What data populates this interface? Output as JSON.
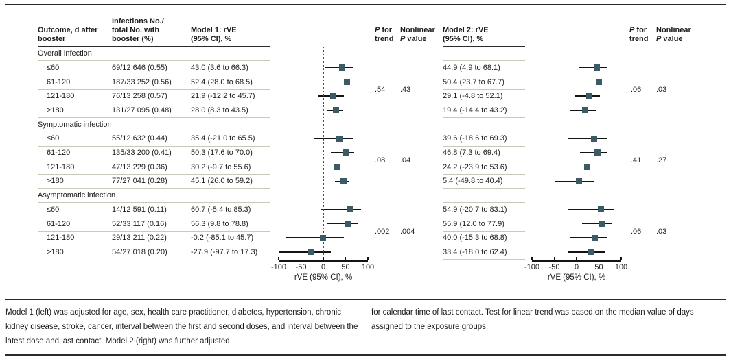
{
  "colors": {
    "marker": "#3d5b66",
    "ci_line": "#141414",
    "row_separator": "#c9c9ba",
    "header_rule": "#2b2b2b",
    "text": "#1d1d1d"
  },
  "header": {
    "col_outcome_l1": "Outcome, d after",
    "col_outcome_l2": "booster",
    "col_infections_l1": "Infections No./",
    "col_infections_l2": "total No. with",
    "col_infections_l3": "booster (%)",
    "col_model1_l1": "Model 1: rVE",
    "col_model1_l2": "(95% CI), %",
    "col_model2_l1": "Model 2: rVE",
    "col_model2_l2": "(95% CI), %",
    "p_trend": {
      "p": "P",
      "rest": " for",
      "line2": "trend"
    },
    "nonlinear": {
      "line1": "Nonlinear",
      "p": "P",
      "rest": " value"
    }
  },
  "axis": {
    "min": -100,
    "max": 100,
    "ticks": [
      -100,
      -50,
      0,
      50,
      100
    ],
    "tick_labels": [
      "-100",
      "-50",
      "0",
      "50",
      "100"
    ],
    "label": "rVE (95% CI), %",
    "reference_line_x": 0
  },
  "groups": [
    {
      "label": "Overall infection",
      "rows": [
        {
          "outcome": "≤60",
          "infections": "69/12 646 (0.55)",
          "m1_text": "43.0 (3.6 to 66.3)",
          "m1": [
            43.0,
            3.6,
            66.3
          ],
          "m2_text": "44.9 (4.9 to 68.1)",
          "m2": [
            44.9,
            4.9,
            68.1
          ]
        },
        {
          "outcome": "61-120",
          "infections": "187/33 252 (0.56)",
          "m1_text": "52.4 (28.0 to 68.5)",
          "m1": [
            52.4,
            28.0,
            68.5
          ],
          "m2_text": "50.4 (23.7 to 67.7)",
          "m2": [
            50.4,
            23.7,
            67.7
          ]
        },
        {
          "outcome": "121-180",
          "infections": "76/13 258 (0.57)",
          "m1_text": "21.9 (-12.2 to 45.7)",
          "m1": [
            21.9,
            -12.2,
            45.7
          ],
          "m2_text": "29.1 (-4.8 to 52.1)",
          "m2": [
            29.1,
            -4.8,
            52.1
          ]
        },
        {
          "outcome": ">180",
          "infections": "131/27 095 (0.48)",
          "m1_text": "28.0 (8.3 to 43.5)",
          "m1": [
            28.0,
            8.3,
            43.5
          ],
          "m2_text": "19.4 (-14.4 to 43.2)",
          "m2": [
            19.4,
            -14.4,
            43.2
          ]
        }
      ],
      "m1_p_trend": ".54",
      "m1_p_nonlinear": ".43",
      "m2_p_trend": ".06",
      "m2_p_nonlinear": ".03"
    },
    {
      "label": "Symptomatic infection",
      "rows": [
        {
          "outcome": "≤60",
          "infections": "55/12 632 (0.44)",
          "m1_text": "35.4 (-21.0 to 65.5)",
          "m1": [
            35.4,
            -21.0,
            65.5
          ],
          "m2_text": "39.6 (-18.6 to 69.3)",
          "m2": [
            39.6,
            -18.6,
            69.3
          ]
        },
        {
          "outcome": "61-120",
          "infections": "135/33 200 (0.41)",
          "m1_text": "50.3 (17.6 to 70.0)",
          "m1": [
            50.3,
            17.6,
            70.0
          ],
          "m2_text": "46.8 (7.3 to 69.4)",
          "m2": [
            46.8,
            7.3,
            69.4
          ]
        },
        {
          "outcome": "121-180",
          "infections": "47/13 229 (0.36)",
          "m1_text": "30.2 (-9.7 to 55.6)",
          "m1": [
            30.2,
            -9.7,
            55.6
          ],
          "m2_text": "24.2 (-23.9 to 53.6)",
          "m2": [
            24.2,
            -23.9,
            53.6
          ]
        },
        {
          "outcome": ">180",
          "infections": "77/27 041 (0.28)",
          "m1_text": "45.1 (26.0 to 59.2)",
          "m1": [
            45.1,
            26.0,
            59.2
          ],
          "m2_text": "5.4 (-49.8 to 40.4)",
          "m2": [
            5.4,
            -49.8,
            40.4
          ]
        }
      ],
      "m1_p_trend": ".08",
      "m1_p_nonlinear": ".04",
      "m2_p_trend": ".41",
      "m2_p_nonlinear": ".27"
    },
    {
      "label": "Asymptomatic infection",
      "rows": [
        {
          "outcome": "≤60",
          "infections": "14/12 591 (0.11)",
          "m1_text": "60.7 (-5.4 to 85.3)",
          "m1": [
            60.7,
            -5.4,
            85.3
          ],
          "m2_text": "54.9 (-20.7 to 83.1)",
          "m2": [
            54.9,
            -20.7,
            83.1
          ]
        },
        {
          "outcome": "61-120",
          "infections": "52/33 117 (0.16)",
          "m1_text": "56.3 (9.8 to 78.8)",
          "m1": [
            56.3,
            9.8,
            78.8
          ],
          "m2_text": "55.9 (12.0 to 77.9)",
          "m2": [
            55.9,
            12.0,
            77.9
          ]
        },
        {
          "outcome": "121-180",
          "infections": "29/13 211 (0.22)",
          "m1_text": "-0.2 (-85.1 to 45.7)",
          "m1": [
            -0.2,
            -85.1,
            45.7
          ],
          "m2_text": "40.0 (-15.3 to 68.8)",
          "m2": [
            40.0,
            -15.3,
            68.8
          ]
        },
        {
          "outcome": ">180",
          "infections": "54/27 018 (0.20)",
          "m1_text": "-27.9 (-97.7 to 17.3)",
          "m1": [
            -27.9,
            -97.7,
            17.3
          ],
          "m2_text": "33.4 (-18.0 to 62.4)",
          "m2": [
            33.4,
            -18.0,
            62.4
          ]
        }
      ],
      "m1_p_trend": ".002",
      "m1_p_nonlinear": ".004",
      "m2_p_trend": ".06",
      "m2_p_nonlinear": ".03"
    }
  ],
  "footnote_left": "Model 1 (left) was adjusted for age, sex, health care practitioner, diabetes, hypertension, chronic kidney disease, stroke, cancer, interval between the first and second doses, and interval between the latest dose and last contact. Model 2 (right) was further adjusted",
  "footnote_right": "for calendar time of last contact. Test for linear trend was based on the median value of days assigned to the exposure groups.",
  "chart_data": [
    {
      "type": "scatter",
      "subtype": "forest-plot",
      "title": "Model 1: rVE (95% CI), %",
      "xlabel": "rVE (95% CI), %",
      "xlim": [
        -100,
        100
      ],
      "xticks": [
        -100,
        -50,
        0,
        50,
        100
      ],
      "reference_line_x": 0,
      "categories": [
        "Overall infection: ≤60",
        "Overall infection: 61-120",
        "Overall infection: 121-180",
        "Overall infection: >180",
        "Symptomatic infection: ≤60",
        "Symptomatic infection: 61-120",
        "Symptomatic infection: 121-180",
        "Symptomatic infection: >180",
        "Asymptomatic infection: ≤60",
        "Asymptomatic infection: 61-120",
        "Asymptomatic infection: 121-180",
        "Asymptomatic infection: >180"
      ],
      "estimates": [
        43.0,
        52.4,
        21.9,
        28.0,
        35.4,
        50.3,
        30.2,
        45.1,
        60.7,
        56.3,
        -0.2,
        -27.9
      ],
      "ci_low": [
        3.6,
        28.0,
        -12.2,
        8.3,
        -21.0,
        17.6,
        -9.7,
        26.0,
        -5.4,
        9.8,
        -85.1,
        -97.7
      ],
      "ci_high": [
        66.3,
        68.5,
        45.7,
        43.5,
        65.5,
        70.0,
        55.6,
        59.2,
        85.3,
        78.8,
        45.7,
        17.3
      ],
      "p_for_trend": [
        ".54",
        ".08",
        ".002"
      ],
      "nonlinear_p": [
        ".43",
        ".04",
        ".004"
      ]
    },
    {
      "type": "scatter",
      "subtype": "forest-plot",
      "title": "Model 2: rVE (95% CI), %",
      "xlabel": "rVE (95% CI), %",
      "xlim": [
        -100,
        100
      ],
      "xticks": [
        -100,
        -50,
        0,
        50,
        100
      ],
      "reference_line_x": 0,
      "categories": [
        "Overall infection: ≤60",
        "Overall infection: 61-120",
        "Overall infection: 121-180",
        "Overall infection: >180",
        "Symptomatic infection: ≤60",
        "Symptomatic infection: 61-120",
        "Symptomatic infection: 121-180",
        "Symptomatic infection: >180",
        "Asymptomatic infection: ≤60",
        "Asymptomatic infection: 61-120",
        "Asymptomatic infection: 121-180",
        "Asymptomatic infection: >180"
      ],
      "estimates": [
        44.9,
        50.4,
        29.1,
        19.4,
        39.6,
        46.8,
        24.2,
        5.4,
        54.9,
        55.9,
        40.0,
        33.4
      ],
      "ci_low": [
        4.9,
        23.7,
        -4.8,
        -14.4,
        -18.6,
        7.3,
        -23.9,
        -49.8,
        -20.7,
        12.0,
        -15.3,
        -18.0
      ],
      "ci_high": [
        68.1,
        67.7,
        52.1,
        43.2,
        69.3,
        69.4,
        53.6,
        40.4,
        83.1,
        77.9,
        68.8,
        62.4
      ],
      "p_for_trend": [
        ".06",
        ".41",
        ".06"
      ],
      "nonlinear_p": [
        ".03",
        ".27",
        ".03"
      ]
    }
  ]
}
